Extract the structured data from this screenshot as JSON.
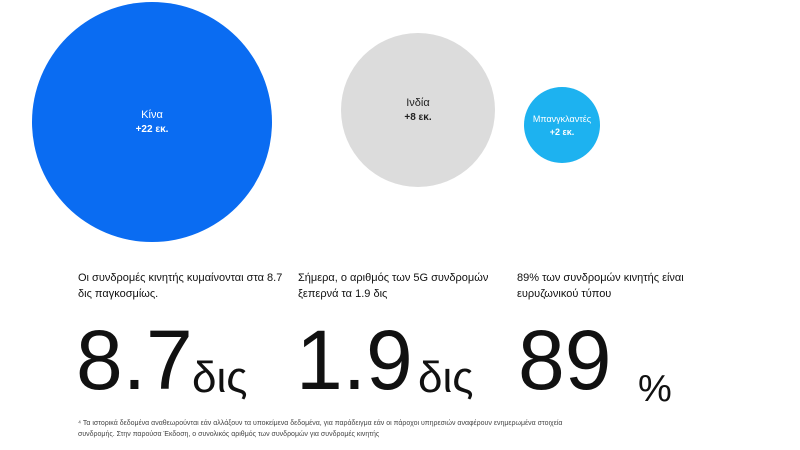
{
  "bubbles": [
    {
      "name": "Κίνα",
      "value": "+22 εκ.",
      "color": "#0a6cf2"
    },
    {
      "name": "Ινδία",
      "value": "+8 εκ.",
      "color": "#dcdcdc"
    },
    {
      "name": "Μπανγκλαντές",
      "value": "+2 εκ.",
      "color": "#1db2f0"
    }
  ],
  "stats": [
    {
      "desc": "Οι συνδρομές κινητής κυμαίνονται στα 8.7 δις παγκοσμίως.",
      "number": "8.7",
      "unit": "δις"
    },
    {
      "desc": "Σήμερα, ο αριθμός των 5G συνδρομών ξεπερνά τα 1.9 δις",
      "number": "1.9",
      "unit": "δις"
    },
    {
      "desc": "89% των συνδρομών κινητής είναι ευρυζωνικού τύπου",
      "number": "89",
      "unit": "%"
    }
  ],
  "footnote": "⁴ Τα ιστορικά δεδομένα αναθεωρούνται εάν αλλάξουν τα υποκείμενα δεδομένα, για παράδειγμα εάν οι πάροχοι υπηρεσιών αναφέρουν ενημερωμένα στοιχεία συνδρομής. Στην παρούσα Έκδοση, ο συνολικός αριθμός των συνδρομών για συνδρομές κινητής"
}
